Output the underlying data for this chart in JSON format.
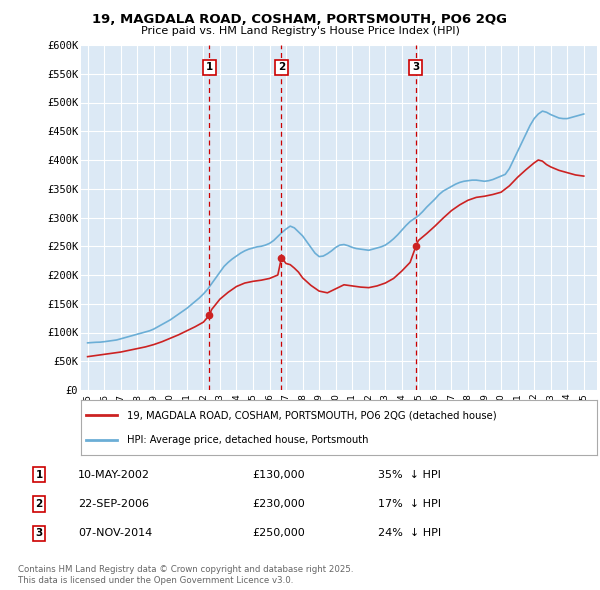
{
  "title": "19, MAGDALA ROAD, COSHAM, PORTSMOUTH, PO6 2QG",
  "subtitle": "Price paid vs. HM Land Registry's House Price Index (HPI)",
  "ylim": [
    0,
    600000
  ],
  "yticks": [
    0,
    50000,
    100000,
    150000,
    200000,
    250000,
    300000,
    350000,
    400000,
    450000,
    500000,
    550000,
    600000
  ],
  "ytick_labels": [
    "£0",
    "£50K",
    "£100K",
    "£150K",
    "£200K",
    "£250K",
    "£300K",
    "£350K",
    "£400K",
    "£450K",
    "£500K",
    "£550K",
    "£600K"
  ],
  "xlim_start": 1994.6,
  "xlim_end": 2025.8,
  "plot_bg_color": "#dce9f5",
  "grid_color": "#ffffff",
  "hpi_line_color": "#6baed6",
  "price_line_color": "#cc2222",
  "sale_vline_color": "#cc0000",
  "annotation_box_color": "#cc0000",
  "sales": [
    {
      "date_label": "10-MAY-2002",
      "date_x": 2002.36,
      "price": 130000,
      "label": "1",
      "pct": "35%",
      "direction": "↓"
    },
    {
      "date_label": "22-SEP-2006",
      "date_x": 2006.72,
      "price": 230000,
      "label": "2",
      "pct": "17%",
      "direction": "↓"
    },
    {
      "date_label": "07-NOV-2014",
      "date_x": 2014.85,
      "price": 250000,
      "label": "3",
      "pct": "24%",
      "direction": "↓"
    }
  ],
  "legend_line1": "19, MAGDALA ROAD, COSHAM, PORTSMOUTH, PO6 2QG (detached house)",
  "legend_line2": "HPI: Average price, detached house, Portsmouth",
  "footer_line1": "Contains HM Land Registry data © Crown copyright and database right 2025.",
  "footer_line2": "This data is licensed under the Open Government Licence v3.0.",
  "hpi_data": [
    [
      1995.0,
      82000
    ],
    [
      1995.25,
      82500
    ],
    [
      1995.5,
      83000
    ],
    [
      1995.75,
      83200
    ],
    [
      1996.0,
      84000
    ],
    [
      1996.25,
      85000
    ],
    [
      1996.5,
      86000
    ],
    [
      1996.75,
      87000
    ],
    [
      1997.0,
      89000
    ],
    [
      1997.25,
      91000
    ],
    [
      1997.5,
      93000
    ],
    [
      1997.75,
      95000
    ],
    [
      1998.0,
      97000
    ],
    [
      1998.25,
      99000
    ],
    [
      1998.5,
      101000
    ],
    [
      1998.75,
      103000
    ],
    [
      1999.0,
      106000
    ],
    [
      1999.25,
      110000
    ],
    [
      1999.5,
      114000
    ],
    [
      1999.75,
      118000
    ],
    [
      2000.0,
      122000
    ],
    [
      2000.25,
      127000
    ],
    [
      2000.5,
      132000
    ],
    [
      2000.75,
      137000
    ],
    [
      2001.0,
      142000
    ],
    [
      2001.25,
      148000
    ],
    [
      2001.5,
      154000
    ],
    [
      2001.75,
      160000
    ],
    [
      2002.0,
      167000
    ],
    [
      2002.25,
      175000
    ],
    [
      2002.5,
      185000
    ],
    [
      2002.75,
      195000
    ],
    [
      2003.0,
      205000
    ],
    [
      2003.25,
      215000
    ],
    [
      2003.5,
      222000
    ],
    [
      2003.75,
      228000
    ],
    [
      2004.0,
      233000
    ],
    [
      2004.25,
      238000
    ],
    [
      2004.5,
      242000
    ],
    [
      2004.75,
      245000
    ],
    [
      2005.0,
      247000
    ],
    [
      2005.25,
      249000
    ],
    [
      2005.5,
      250000
    ],
    [
      2005.75,
      252000
    ],
    [
      2006.0,
      255000
    ],
    [
      2006.25,
      260000
    ],
    [
      2006.5,
      267000
    ],
    [
      2006.75,
      274000
    ],
    [
      2007.0,
      280000
    ],
    [
      2007.25,
      285000
    ],
    [
      2007.5,
      282000
    ],
    [
      2007.75,
      275000
    ],
    [
      2008.0,
      268000
    ],
    [
      2008.25,
      258000
    ],
    [
      2008.5,
      248000
    ],
    [
      2008.75,
      238000
    ],
    [
      2009.0,
      232000
    ],
    [
      2009.25,
      233000
    ],
    [
      2009.5,
      237000
    ],
    [
      2009.75,
      242000
    ],
    [
      2010.0,
      248000
    ],
    [
      2010.25,
      252000
    ],
    [
      2010.5,
      253000
    ],
    [
      2010.75,
      251000
    ],
    [
      2011.0,
      248000
    ],
    [
      2011.25,
      246000
    ],
    [
      2011.5,
      245000
    ],
    [
      2011.75,
      244000
    ],
    [
      2012.0,
      243000
    ],
    [
      2012.25,
      245000
    ],
    [
      2012.5,
      247000
    ],
    [
      2012.75,
      249000
    ],
    [
      2013.0,
      252000
    ],
    [
      2013.25,
      257000
    ],
    [
      2013.5,
      263000
    ],
    [
      2013.75,
      270000
    ],
    [
      2014.0,
      278000
    ],
    [
      2014.25,
      286000
    ],
    [
      2014.5,
      293000
    ],
    [
      2014.75,
      298000
    ],
    [
      2015.0,
      303000
    ],
    [
      2015.25,
      310000
    ],
    [
      2015.5,
      318000
    ],
    [
      2015.75,
      325000
    ],
    [
      2016.0,
      332000
    ],
    [
      2016.25,
      340000
    ],
    [
      2016.5,
      346000
    ],
    [
      2016.75,
      350000
    ],
    [
      2017.0,
      354000
    ],
    [
      2017.25,
      358000
    ],
    [
      2017.5,
      361000
    ],
    [
      2017.75,
      363000
    ],
    [
      2018.0,
      364000
    ],
    [
      2018.25,
      365000
    ],
    [
      2018.5,
      365000
    ],
    [
      2018.75,
      364000
    ],
    [
      2019.0,
      363000
    ],
    [
      2019.25,
      364000
    ],
    [
      2019.5,
      366000
    ],
    [
      2019.75,
      369000
    ],
    [
      2020.0,
      372000
    ],
    [
      2020.25,
      375000
    ],
    [
      2020.5,
      385000
    ],
    [
      2020.75,
      400000
    ],
    [
      2021.0,
      415000
    ],
    [
      2021.25,
      430000
    ],
    [
      2021.5,
      445000
    ],
    [
      2021.75,
      460000
    ],
    [
      2022.0,
      472000
    ],
    [
      2022.25,
      480000
    ],
    [
      2022.5,
      485000
    ],
    [
      2022.75,
      483000
    ],
    [
      2023.0,
      479000
    ],
    [
      2023.25,
      476000
    ],
    [
      2023.5,
      473000
    ],
    [
      2023.75,
      472000
    ],
    [
      2024.0,
      472000
    ],
    [
      2024.25,
      474000
    ],
    [
      2024.5,
      476000
    ],
    [
      2024.75,
      478000
    ],
    [
      2025.0,
      480000
    ]
  ],
  "price_data": [
    [
      1995.0,
      58000
    ],
    [
      1995.25,
      59000
    ],
    [
      1995.5,
      60000
    ],
    [
      1995.75,
      61000
    ],
    [
      1996.0,
      62000
    ],
    [
      1996.5,
      64000
    ],
    [
      1997.0,
      66000
    ],
    [
      1997.5,
      69000
    ],
    [
      1998.0,
      72000
    ],
    [
      1998.5,
      75000
    ],
    [
      1999.0,
      79000
    ],
    [
      1999.5,
      84000
    ],
    [
      2000.0,
      90000
    ],
    [
      2000.5,
      96000
    ],
    [
      2001.0,
      103000
    ],
    [
      2001.5,
      110000
    ],
    [
      2002.0,
      118000
    ],
    [
      2002.36,
      130000
    ],
    [
      2002.5,
      140000
    ],
    [
      2003.0,
      158000
    ],
    [
      2003.5,
      170000
    ],
    [
      2004.0,
      180000
    ],
    [
      2004.5,
      186000
    ],
    [
      2005.0,
      189000
    ],
    [
      2005.5,
      191000
    ],
    [
      2006.0,
      194000
    ],
    [
      2006.5,
      200000
    ],
    [
      2006.72,
      230000
    ],
    [
      2007.0,
      220000
    ],
    [
      2007.25,
      218000
    ],
    [
      2007.5,
      212000
    ],
    [
      2007.75,
      205000
    ],
    [
      2008.0,
      195000
    ],
    [
      2008.5,
      182000
    ],
    [
      2009.0,
      172000
    ],
    [
      2009.5,
      169000
    ],
    [
      2010.0,
      176000
    ],
    [
      2010.5,
      183000
    ],
    [
      2011.0,
      181000
    ],
    [
      2011.5,
      179000
    ],
    [
      2012.0,
      178000
    ],
    [
      2012.5,
      181000
    ],
    [
      2013.0,
      186000
    ],
    [
      2013.5,
      194000
    ],
    [
      2014.0,
      207000
    ],
    [
      2014.5,
      222000
    ],
    [
      2014.85,
      250000
    ],
    [
      2015.0,
      260000
    ],
    [
      2015.5,
      272000
    ],
    [
      2016.0,
      285000
    ],
    [
      2016.5,
      299000
    ],
    [
      2017.0,
      312000
    ],
    [
      2017.5,
      322000
    ],
    [
      2018.0,
      330000
    ],
    [
      2018.5,
      335000
    ],
    [
      2019.0,
      337000
    ],
    [
      2019.5,
      340000
    ],
    [
      2020.0,
      344000
    ],
    [
      2020.5,
      355000
    ],
    [
      2021.0,
      370000
    ],
    [
      2021.5,
      383000
    ],
    [
      2022.0,
      395000
    ],
    [
      2022.25,
      400000
    ],
    [
      2022.5,
      398000
    ],
    [
      2022.75,
      392000
    ],
    [
      2023.0,
      388000
    ],
    [
      2023.25,
      385000
    ],
    [
      2023.5,
      382000
    ],
    [
      2023.75,
      380000
    ],
    [
      2024.0,
      378000
    ],
    [
      2024.25,
      376000
    ],
    [
      2024.5,
      374000
    ],
    [
      2024.75,
      373000
    ],
    [
      2025.0,
      372000
    ]
  ]
}
